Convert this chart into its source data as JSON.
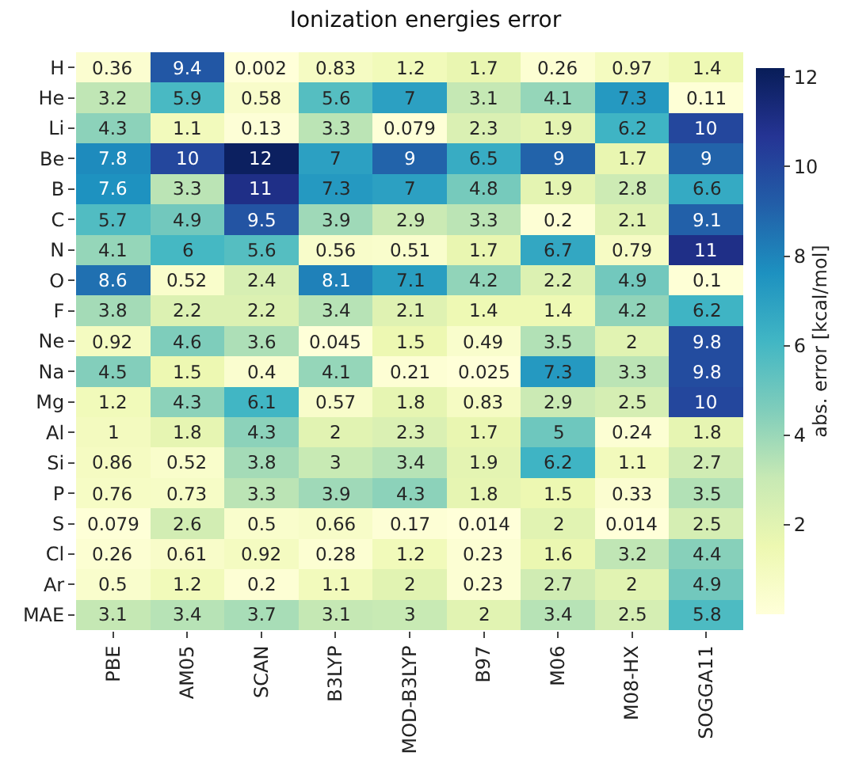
{
  "chart_data": {
    "type": "heatmap",
    "title": "Ionization energies error",
    "clabel": "abs. error [kcal/mol]",
    "categories": [
      "PBE",
      "AM05",
      "SCAN",
      "B3LYP",
      "MOD-B3LYP",
      "B97",
      "M06",
      "M08-HX",
      "SOGGA11"
    ],
    "y_categories": [
      "H",
      "He",
      "Li",
      "Be",
      "B",
      "C",
      "N",
      "O",
      "F",
      "Ne",
      "Na",
      "Mg",
      "Al",
      "Si",
      "P",
      "S",
      "Cl",
      "Ar",
      "MAE"
    ],
    "cells": [
      [
        0.36,
        9.4,
        0.002,
        0.83,
        1.2,
        1.7,
        0.26,
        0.97,
        1.4
      ],
      [
        3.2,
        5.9,
        0.58,
        5.6,
        7,
        3.1,
        4.1,
        7.3,
        0.11
      ],
      [
        4.3,
        1.1,
        0.13,
        3.3,
        0.079,
        2.3,
        1.9,
        6.2,
        10
      ],
      [
        7.8,
        10,
        12,
        7,
        9,
        6.5,
        9,
        1.7,
        9
      ],
      [
        7.6,
        3.3,
        11,
        7.3,
        7,
        4.8,
        1.9,
        2.8,
        6.6
      ],
      [
        5.7,
        4.9,
        9.5,
        3.9,
        2.9,
        3.3,
        0.2,
        2.1,
        9.1
      ],
      [
        4.1,
        6,
        5.6,
        0.56,
        0.51,
        1.7,
        6.7,
        0.79,
        11
      ],
      [
        8.6,
        0.52,
        2.4,
        8.1,
        7.1,
        4.2,
        2.2,
        4.9,
        0.1
      ],
      [
        3.8,
        2.2,
        2.2,
        3.4,
        2.1,
        1.4,
        1.4,
        4.2,
        6.2
      ],
      [
        0.92,
        4.6,
        3.6,
        0.045,
        1.5,
        0.49,
        3.5,
        2,
        9.8
      ],
      [
        4.5,
        1.5,
        0.4,
        4.1,
        0.21,
        0.025,
        7.3,
        3.3,
        9.8
      ],
      [
        1.2,
        4.3,
        6.1,
        0.57,
        1.8,
        0.83,
        2.9,
        2.5,
        10
      ],
      [
        1,
        1.8,
        4.3,
        2,
        2.3,
        1.7,
        5,
        0.24,
        1.8
      ],
      [
        0.86,
        0.52,
        3.8,
        3,
        3.4,
        1.9,
        6.2,
        1.1,
        2.7
      ],
      [
        0.76,
        0.73,
        3.3,
        3.9,
        4.3,
        1.8,
        1.5,
        0.33,
        3.5
      ],
      [
        0.079,
        2.6,
        0.5,
        0.66,
        0.17,
        0.014,
        2,
        0.014,
        2.5
      ],
      [
        0.26,
        0.61,
        0.92,
        0.28,
        1.2,
        0.23,
        1.6,
        3.2,
        4.4
      ],
      [
        0.5,
        1.2,
        0.2,
        1.1,
        2,
        0.23,
        2.7,
        2,
        4.9
      ],
      [
        3.1,
        3.4,
        3.7,
        3.1,
        3,
        2,
        3.4,
        2.5,
        5.8
      ]
    ],
    "data_labels": true,
    "clim": [
      0.002,
      12.2
    ],
    "cticks": [
      2,
      4,
      6,
      8,
      10,
      12
    ]
  }
}
